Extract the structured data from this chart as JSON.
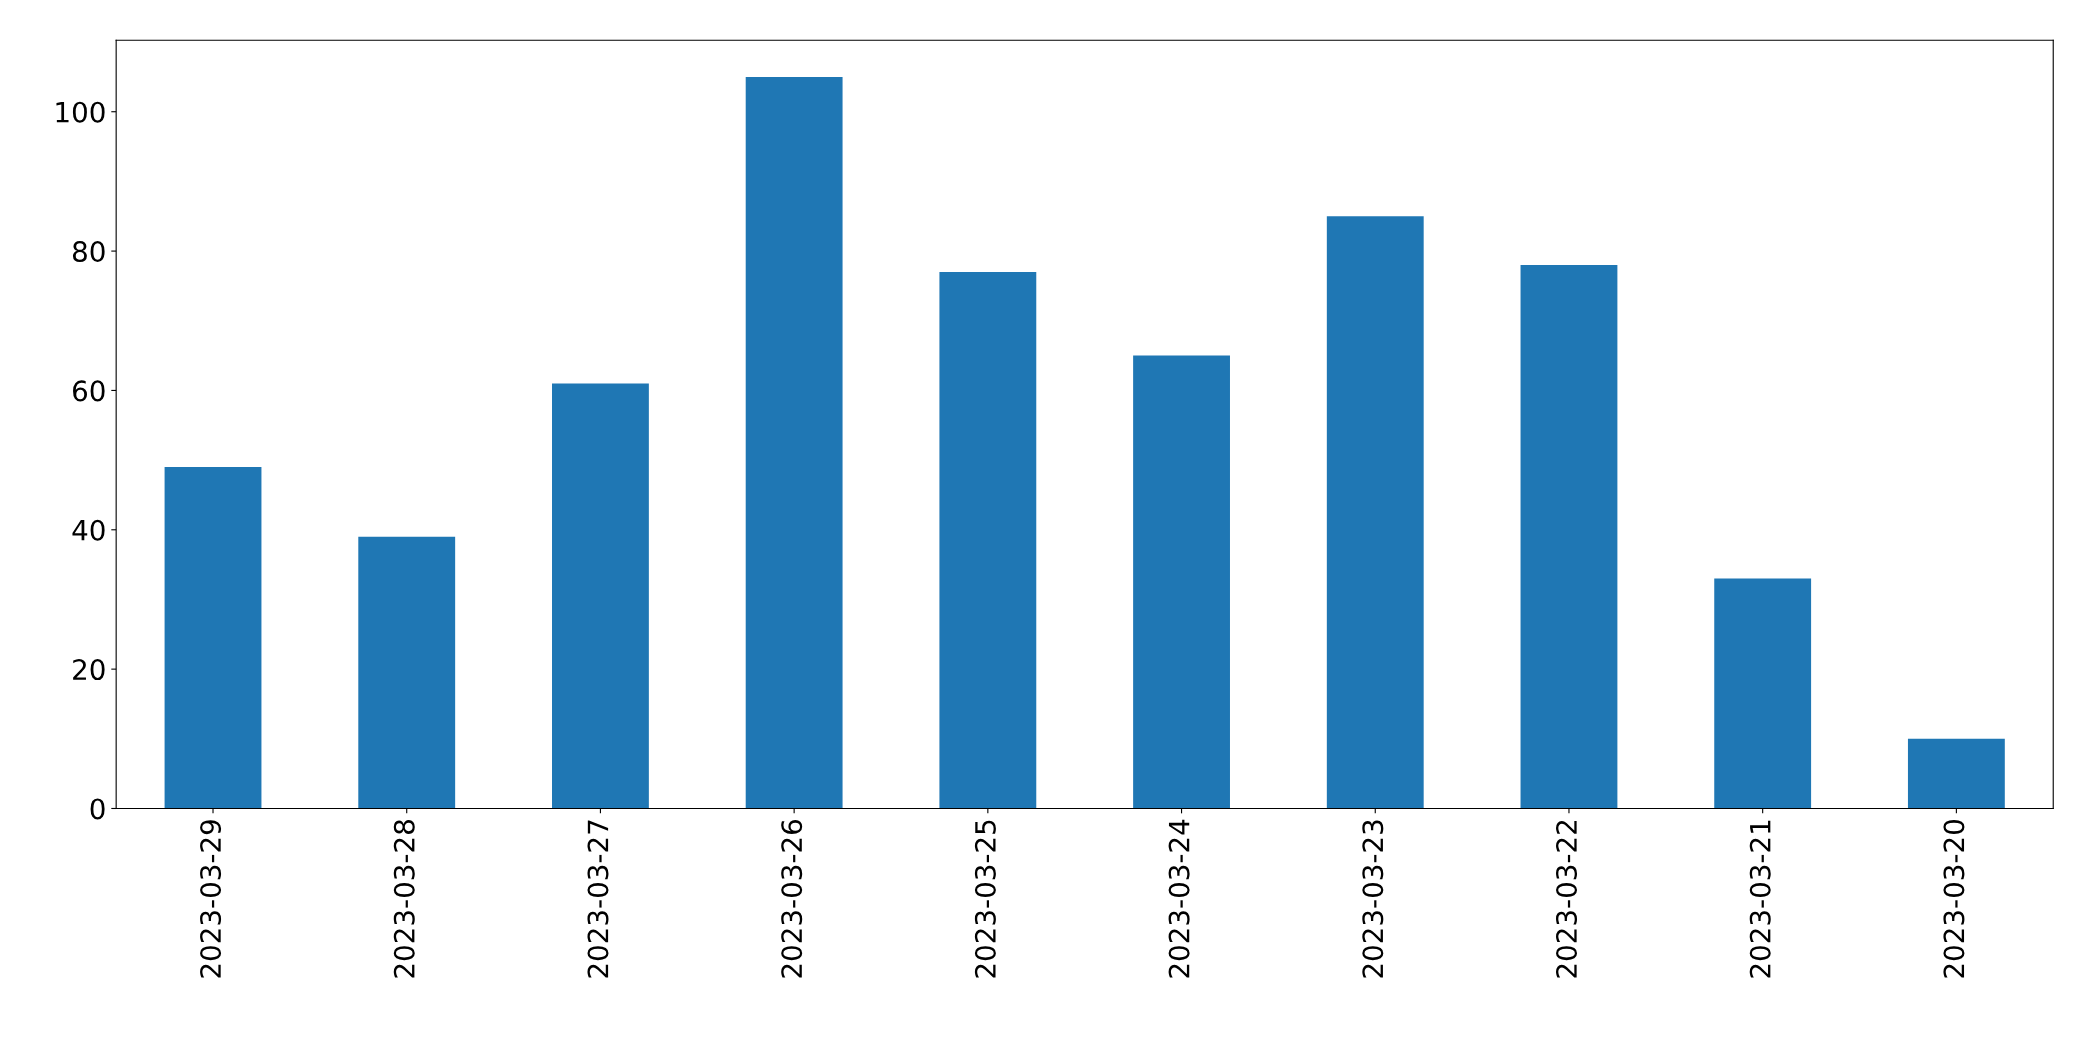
{
  "chart_data": {
    "type": "bar",
    "categories": [
      "2023-03-29",
      "2023-03-28",
      "2023-03-27",
      "2023-03-26",
      "2023-03-25",
      "2023-03-24",
      "2023-03-23",
      "2023-03-22",
      "2023-03-21",
      "2023-03-20"
    ],
    "values": [
      49,
      39,
      61,
      105,
      77,
      65,
      85,
      78,
      33,
      10
    ],
    "color": "#1f77b4",
    "ylim": [
      0,
      110.25
    ],
    "yticks": [
      0,
      20,
      40,
      60,
      80,
      100
    ],
    "grid": false,
    "legend": false
  }
}
